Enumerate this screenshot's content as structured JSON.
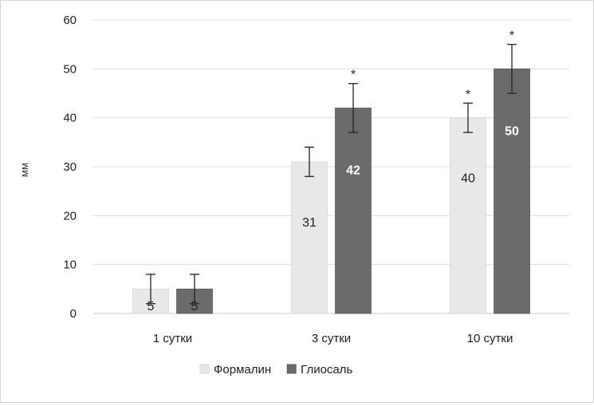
{
  "chart_data": {
    "type": "bar",
    "title": "",
    "xlabel": "",
    "ylabel": "мм",
    "ylim": [
      0,
      60
    ],
    "yticks": [
      0,
      10,
      20,
      30,
      40,
      50,
      60
    ],
    "categories": [
      "1 сутки",
      "3 сутки",
      "10 сутки"
    ],
    "grid": true,
    "legend_position": "bottom",
    "series": [
      {
        "name": "Формалин",
        "color": "#e8e8e8",
        "values": [
          5,
          31,
          40
        ],
        "error": [
          3,
          3,
          3
        ],
        "data_labels": [
          "5",
          "31",
          "40"
        ],
        "significance": [
          "",
          "",
          "*"
        ]
      },
      {
        "name": "Глиосаль",
        "color": "#6b6b6b",
        "values": [
          5,
          42,
          50
        ],
        "error": [
          3,
          5,
          5
        ],
        "data_labels": [
          "5",
          "42",
          "50"
        ],
        "significance": [
          "",
          "*",
          "*"
        ]
      }
    ]
  }
}
